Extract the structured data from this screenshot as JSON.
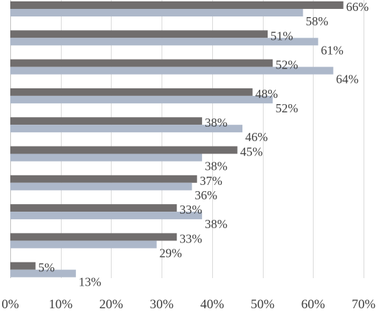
{
  "chart_data": {
    "type": "bar",
    "orientation": "horizontal",
    "xlim": [
      0,
      70
    ],
    "x_tick_labels": [
      "0%",
      "10%",
      "20%",
      "30%",
      "40%",
      "50%",
      "60%",
      "70%"
    ],
    "grid": "vertical",
    "legend": "none",
    "categories": [
      "",
      "",
      "",
      "",
      "",
      "",
      "",
      "",
      "",
      ""
    ],
    "series": [
      {
        "values": [
          66,
          51,
          52,
          48,
          38,
          45,
          37,
          33,
          33,
          5
        ],
        "labels": [
          "66%",
          "51%",
          "52%",
          "48%",
          "38%",
          "45%",
          "37%",
          "33%",
          "33%",
          "5%"
        ],
        "color": "#716e6e"
      },
      {
        "values": [
          58,
          61,
          64,
          52,
          46,
          38,
          36,
          38,
          29,
          13
        ],
        "labels": [
          "58%",
          "61%",
          "64%",
          "52%",
          "46%",
          "38%",
          "36%",
          "38%",
          "29%",
          "13%"
        ],
        "color": "#adb8ca"
      }
    ],
    "gridline_color": "#d9d9d9",
    "axis_color": "#bfbfbf"
  }
}
